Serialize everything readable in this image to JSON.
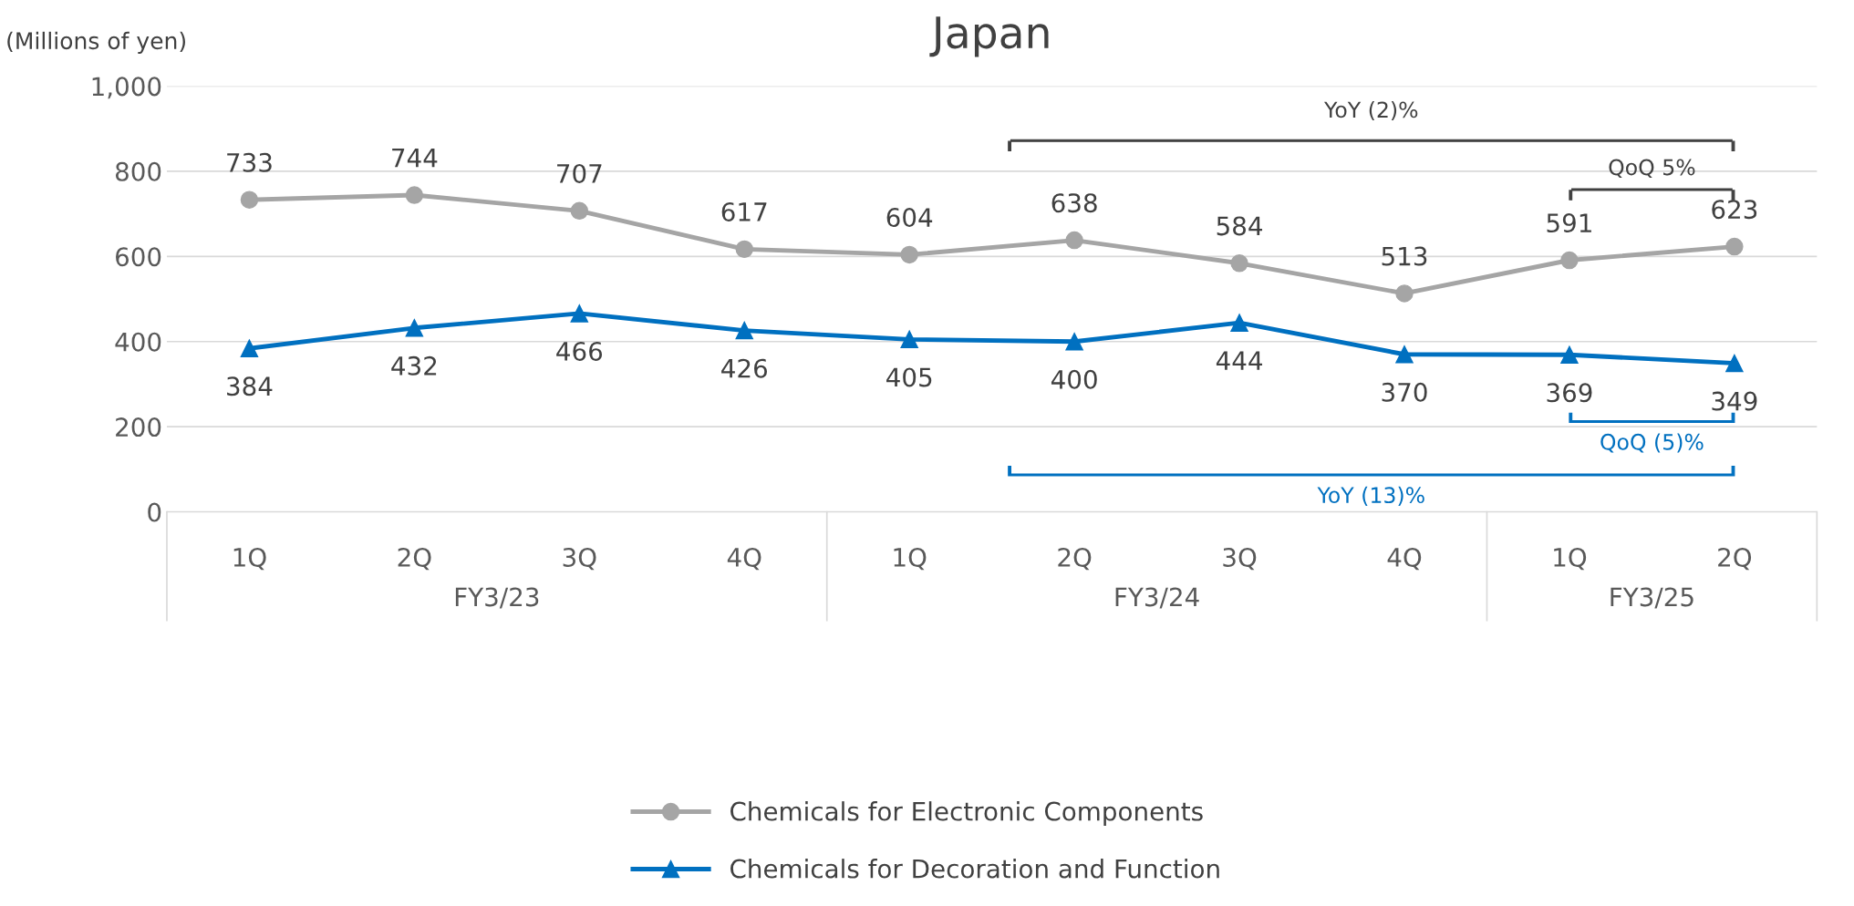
{
  "chart_data": {
    "type": "line",
    "title": "Japan",
    "ylabel": "(Millions of yen)",
    "categories": [
      "1Q",
      "2Q",
      "3Q",
      "4Q",
      "1Q",
      "2Q",
      "3Q",
      "4Q",
      "1Q",
      "2Q"
    ],
    "series": [
      {
        "name": "Chemicals for Electronic Components",
        "color": "#a5a5a5",
        "marker": "circle",
        "values": [
          733,
          744,
          707,
          617,
          604,
          638,
          584,
          513,
          591,
          623
        ]
      },
      {
        "name": "Chemicals for Decoration and Function",
        "color": "#0070c0",
        "marker": "triangle",
        "values": [
          384,
          432,
          466,
          426,
          405,
          400,
          444,
          370,
          369,
          349
        ]
      }
    ],
    "ylim": [
      0,
      1000
    ],
    "yticks": [
      0,
      200,
      400,
      600,
      800,
      {
        "value": 1000,
        "label": "1,000"
      }
    ],
    "grid": "y",
    "legend": "bottom",
    "data_labels": true,
    "line_style": "solid",
    "annotations": [
      "FY3/23",
      "FY3/24",
      "FY3/25",
      "YoY (2)%",
      "QoQ 5%",
      "QoQ (5)%",
      "YoY (13)%"
    ]
  }
}
